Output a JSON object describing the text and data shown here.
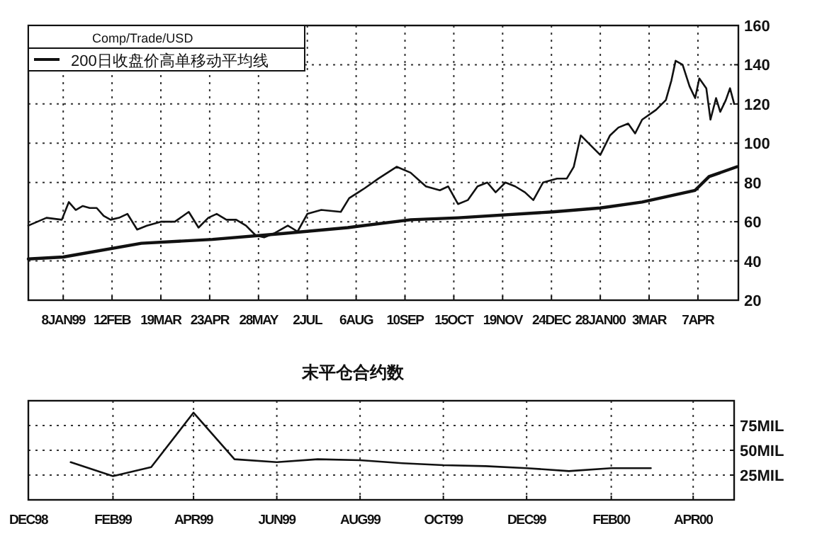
{
  "chart_data": [
    {
      "type": "line",
      "legend_title": "Comp/Trade/USD",
      "legend": "top left",
      "grid": true,
      "marker": "none",
      "line_style": "solid",
      "xlim": [
        "1998-12-14",
        "2000-05-06"
      ],
      "ylim": [
        20,
        160
      ],
      "yticks": [
        20,
        40,
        60,
        80,
        100,
        120,
        140,
        160
      ],
      "xticks": [
        {
          "value": "1999-01-08",
          "label": "8JAN99"
        },
        {
          "value": "1999-02-12",
          "label": "12FEB"
        },
        {
          "value": "1999-03-19",
          "label": "19MAR"
        },
        {
          "value": "1999-04-23",
          "label": "23APR"
        },
        {
          "value": "1999-05-28",
          "label": "28MAY"
        },
        {
          "value": "1999-07-02",
          "label": "2JUL"
        },
        {
          "value": "1999-08-06",
          "label": "6AUG"
        },
        {
          "value": "1999-09-10",
          "label": "10SEP"
        },
        {
          "value": "1999-10-15",
          "label": "15OCT"
        },
        {
          "value": "1999-11-19",
          "label": "19NOV"
        },
        {
          "value": "1999-12-24",
          "label": "24DEC"
        },
        {
          "value": "2000-01-28",
          "label": "28JAN00"
        },
        {
          "value": "2000-03-03",
          "label": "3MAR"
        },
        {
          "value": "2000-04-07",
          "label": "7APR"
        }
      ],
      "series": [
        {
          "color": "#111111",
          "x": [
            "1998-12-14",
            "1998-12-27",
            "1999-01-07",
            "1999-01-12",
            "1999-01-17",
            "1999-01-22",
            "1999-01-27",
            "1999-02-01",
            "1999-02-06",
            "1999-02-11",
            "1999-02-17",
            "1999-02-23",
            "1999-03-02",
            "1999-03-09",
            "1999-03-19",
            "1999-03-29",
            "1999-04-08",
            "1999-04-15",
            "1999-04-22",
            "1999-04-28",
            "1999-05-05",
            "1999-05-12",
            "1999-05-19",
            "1999-05-26",
            "1999-06-01",
            "1999-06-08",
            "1999-06-18",
            "1999-06-25",
            "1999-07-02",
            "1999-07-12",
            "1999-07-26",
            "1999-08-01",
            "1999-08-12",
            "1999-08-22",
            "1999-09-04",
            "1999-09-14",
            "1999-09-25",
            "1999-10-05",
            "1999-10-11",
            "1999-10-18",
            "1999-10-25",
            "1999-11-01",
            "1999-11-08",
            "1999-11-14",
            "1999-11-21",
            "1999-11-28",
            "1999-12-05",
            "1999-12-11",
            "1999-12-18",
            "1999-12-28",
            "2000-01-04",
            "2000-01-09",
            "2000-01-14",
            "2000-01-21",
            "2000-01-28",
            "2000-02-04",
            "2000-02-10",
            "2000-02-17",
            "2000-02-22",
            "2000-02-27",
            "2000-03-08",
            "2000-03-15",
            "2000-03-19",
            "2000-03-22",
            "2000-03-27",
            "2000-04-01",
            "2000-04-05",
            "2000-04-08",
            "2000-04-13",
            "2000-04-16",
            "2000-04-20",
            "2000-04-23",
            "2000-04-27",
            "2000-04-30",
            "2000-05-03"
          ],
          "values": [
            58,
            62,
            61,
            70,
            66,
            68,
            67,
            67,
            63,
            61,
            62,
            64,
            56,
            58,
            60,
            60,
            65,
            57,
            62,
            64,
            61,
            61,
            58,
            53,
            52,
            54,
            58,
            55,
            64,
            66,
            65,
            72,
            77,
            82,
            88,
            85,
            78,
            76,
            78,
            69,
            71,
            78,
            80,
            75,
            80,
            78,
            75,
            71,
            80,
            82,
            82,
            88,
            104,
            99,
            94,
            104,
            108,
            110,
            105,
            112,
            117,
            122,
            132,
            142,
            140,
            129,
            123,
            133,
            128,
            112,
            123,
            116,
            122,
            128,
            120
          ]
        },
        {
          "name": "200日收盘价高单移动平均线",
          "color": "#111111",
          "x": [
            "1998-12-14",
            "1999-01-08",
            "1999-03-05",
            "1999-04-25",
            "1999-06-15",
            "1999-07-31",
            "1999-09-14",
            "1999-10-18",
            "1999-12-25",
            "2000-01-28",
            "2000-02-27",
            "2000-04-05",
            "2000-04-15",
            "2000-05-05"
          ],
          "values": [
            41,
            42,
            49,
            51,
            54,
            57,
            61,
            62,
            65,
            67,
            70,
            76,
            83,
            88
          ]
        }
      ]
    },
    {
      "type": "line",
      "title": "末平仓合约数",
      "grid": true,
      "marker": "none",
      "line_style": "solid",
      "xlim": [
        "1998-12",
        "2000-05"
      ],
      "ylim": [
        0,
        100
      ],
      "yticks": [
        {
          "value": 25,
          "label": "25MIL"
        },
        {
          "value": 50,
          "label": "50MIL"
        },
        {
          "value": 75,
          "label": "75MIL"
        }
      ],
      "xticks": [
        {
          "value": "1998-12",
          "label": "DEC98"
        },
        {
          "value": "1999-02",
          "label": "FEB99"
        },
        {
          "value": "1999-04",
          "label": "APR99"
        },
        {
          "value": "1999-06",
          "label": "JUN99"
        },
        {
          "value": "1999-08",
          "label": "AUG99"
        },
        {
          "value": "1999-10",
          "label": "OCT99"
        },
        {
          "value": "1999-12",
          "label": "DEC99"
        },
        {
          "value": "2000-02",
          "label": "FEB00"
        },
        {
          "value": "2000-04",
          "label": "APR00"
        }
      ],
      "series": [
        {
          "color": "#111111",
          "x": [
            "1999-01",
            "1999-02",
            "1999-03",
            "1999-04",
            "1999-05",
            "1999-06",
            "1999-07",
            "1999-08",
            "1999-09",
            "1999-10",
            "1999-11",
            "1999-12",
            "2000-01",
            "2000-02",
            "2000-03"
          ],
          "values": [
            38,
            24,
            33,
            88,
            41,
            38,
            41,
            40,
            37,
            35,
            34,
            32,
            29,
            32,
            32
          ]
        }
      ]
    }
  ]
}
